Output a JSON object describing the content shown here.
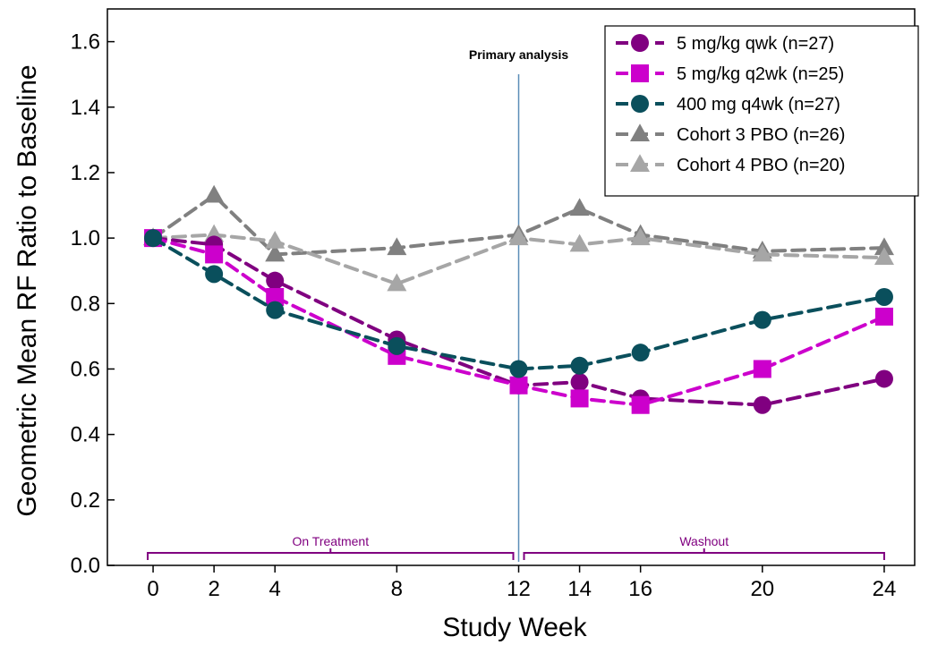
{
  "chart_data": {
    "type": "line",
    "xlabel": "Study Week",
    "ylabel": "Geometric Mean RF Ratio to Baseline",
    "xlim": [
      -1.5,
      25
    ],
    "ylim": [
      0,
      1.7
    ],
    "x_ticks": [
      0,
      2,
      4,
      8,
      12,
      14,
      16,
      20,
      24
    ],
    "y_ticks": [
      0.0,
      0.2,
      0.4,
      0.6,
      0.8,
      1.0,
      1.2,
      1.4,
      1.6
    ],
    "y_tick_labels": [
      "0.0",
      "0.2",
      "0.4",
      "0.6",
      "0.8",
      "1.0",
      "1.2",
      "1.4",
      "1.6"
    ],
    "series": [
      {
        "name": "5 mg/kg qwk (n=27)",
        "color": "#800080",
        "marker": "circle",
        "x": [
          0,
          2,
          4,
          8,
          12,
          14,
          16,
          20,
          24
        ],
        "y": [
          1.0,
          0.98,
          0.87,
          0.69,
          0.55,
          0.56,
          0.51,
          0.49,
          0.57
        ]
      },
      {
        "name": "5 mg/kg q2wk (n=25)",
        "color": "#cc00cc",
        "marker": "square",
        "x": [
          0,
          2,
          4,
          8,
          12,
          14,
          16,
          20,
          24
        ],
        "y": [
          1.0,
          0.95,
          0.82,
          0.64,
          0.55,
          0.51,
          0.49,
          0.6,
          0.76
        ]
      },
      {
        "name": "400 mg q4wk (n=27)",
        "color": "#0a4f5c",
        "marker": "circle",
        "x": [
          0,
          2,
          4,
          8,
          12,
          14,
          16,
          20,
          24
        ],
        "y": [
          1.0,
          0.89,
          0.78,
          0.67,
          0.6,
          0.61,
          0.65,
          0.75,
          0.82
        ]
      },
      {
        "name": "Cohort 3 PBO (n=26)",
        "color": "#808080",
        "marker": "triangle",
        "x": [
          0,
          2,
          4,
          8,
          12,
          14,
          16,
          20,
          24
        ],
        "y": [
          1.0,
          1.13,
          0.95,
          0.97,
          1.01,
          1.09,
          1.01,
          0.96,
          0.97
        ]
      },
      {
        "name": "Cohort 4 PBO (n=20)",
        "color": "#a6a6a6",
        "marker": "triangle",
        "x": [
          0,
          2,
          4,
          8,
          12,
          14,
          16,
          20,
          24
        ],
        "y": [
          1.0,
          1.01,
          0.99,
          0.86,
          1.0,
          0.98,
          1.0,
          0.95,
          0.94
        ]
      }
    ],
    "annotations": {
      "vline_x": 12,
      "vline_label": "Primary analysis",
      "vline_color": "#5b8db8",
      "bracket_color": "#800080",
      "brackets": [
        {
          "label": "On Treatment",
          "from": 0,
          "to": 12
        },
        {
          "label": "Washout",
          "from": 12,
          "to": 24
        }
      ]
    },
    "legend_position": "top-right",
    "grid": false
  }
}
